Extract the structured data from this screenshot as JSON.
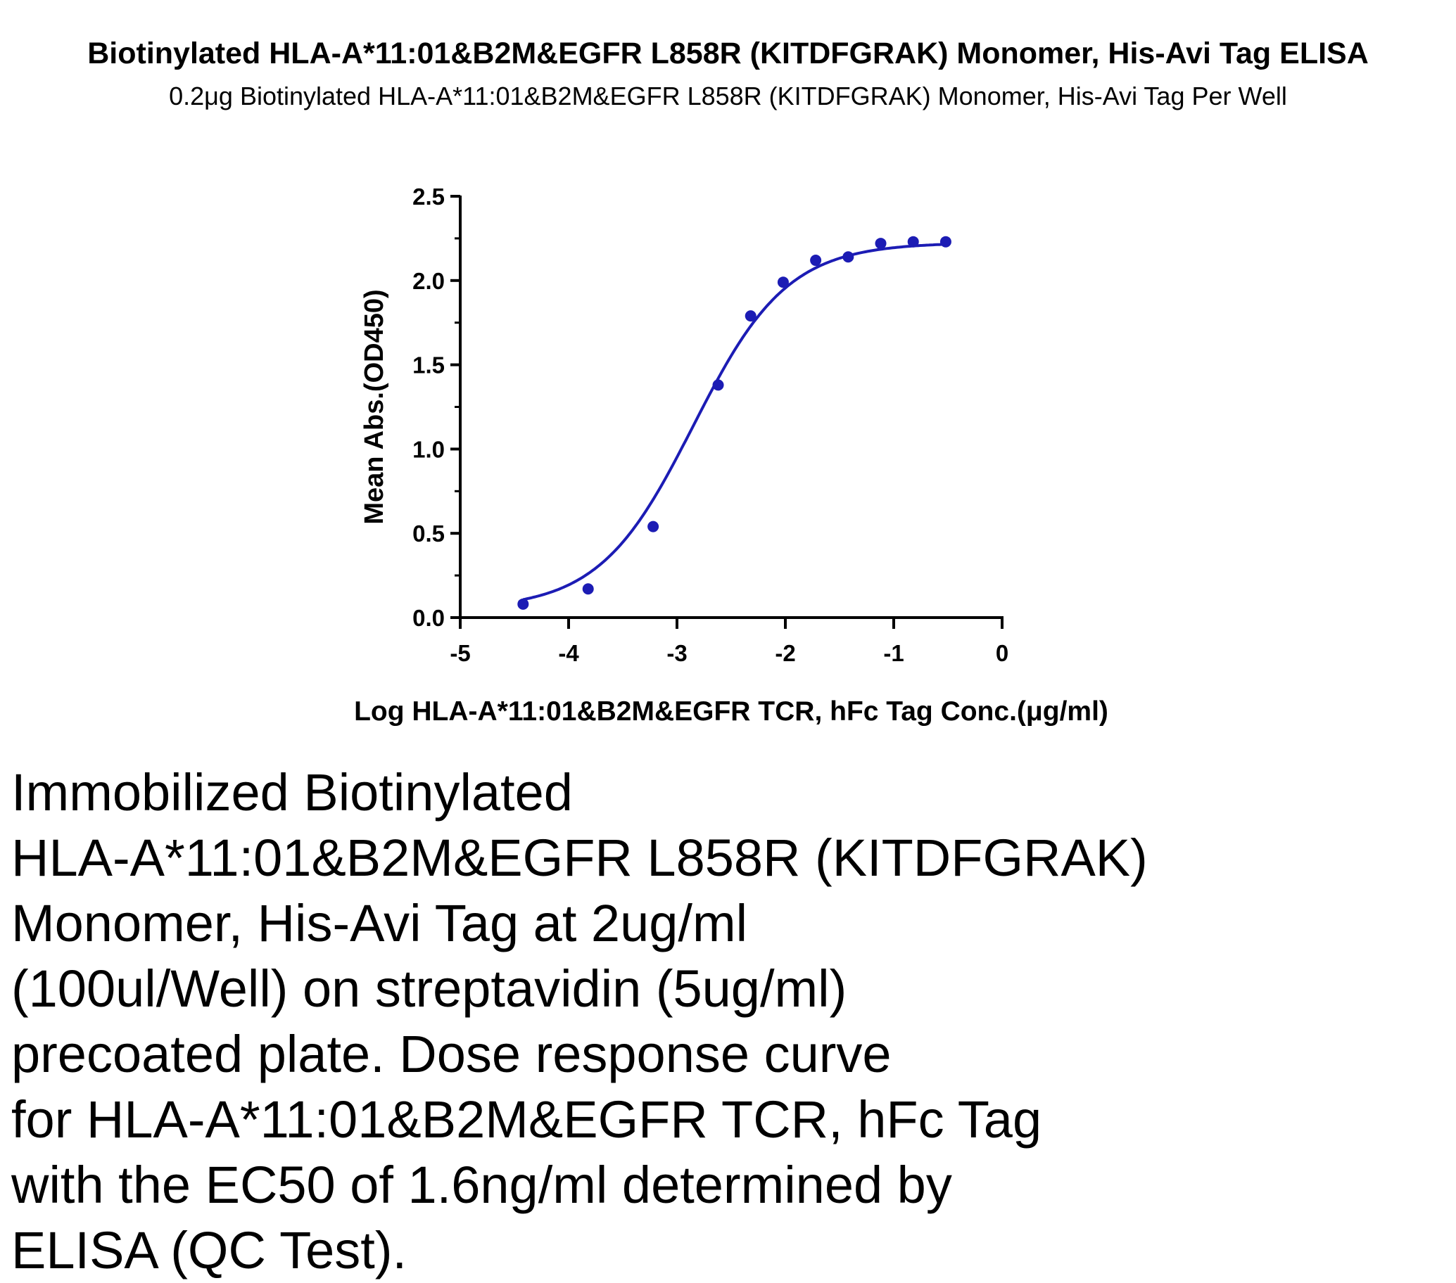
{
  "header": {
    "title": "Biotinylated HLA-A*11:01&B2M&EGFR L858R (KITDFGRAK) Monomer, His-Avi Tag ELISA",
    "subtitle": "0.2μg Biotinylated HLA-A*11:01&B2M&EGFR L858R (KITDFGRAK) Monomer, His-Avi Tag Per Well"
  },
  "chart_data": {
    "type": "scatter",
    "title": "Biotinylated HLA-A*11:01&B2M&EGFR L858R (KITDFGRAK) Monomer, His-Avi Tag ELISA",
    "subtitle": "0.2μg Biotinylated HLA-A*11:01&B2M&EGFR L858R (KITDFGRAK) Monomer, His-Avi Tag Per Well",
    "xlabel": "Log HLA-A*11:01&B2M&EGFR TCR, hFc Tag Conc.(μg/ml)",
    "ylabel": "Mean Abs.(OD450)",
    "xlim": [
      -5,
      0
    ],
    "ylim": [
      0,
      2.5
    ],
    "x_ticks": [
      "-5",
      "-4",
      "-3",
      "-2",
      "-1",
      "0"
    ],
    "y_ticks": [
      "0.0",
      "0.5",
      "1.0",
      "1.5",
      "2.0",
      "2.5"
    ],
    "grid": false,
    "series": [
      {
        "x": [
          -4.42,
          -3.82,
          -3.22,
          -2.62,
          -2.32,
          -2.02,
          -1.72,
          -1.42,
          -1.12,
          -0.82,
          -0.52
        ],
        "y": [
          0.08,
          0.17,
          0.54,
          1.38,
          1.79,
          1.99,
          2.12,
          2.14,
          2.22,
          2.23,
          2.23
        ],
        "fit": "sigmoidal dose-response curve",
        "color": "#1c1cb4"
      }
    ]
  },
  "caption": {
    "lines": [
      "Immobilized Biotinylated",
      "HLA-A*11:01&B2M&EGFR L858R (KITDFGRAK)",
      "Monomer, His-Avi Tag at 2ug/ml",
      "(100ul/Well) on streptavidin (5ug/ml)",
      "precoated plate. Dose response curve",
      "for HLA-A*11:01&B2M&EGFR TCR, hFc Tag",
      "with the EC50 of 1.6ng/ml determined by",
      "ELISA (QC Test)."
    ]
  }
}
